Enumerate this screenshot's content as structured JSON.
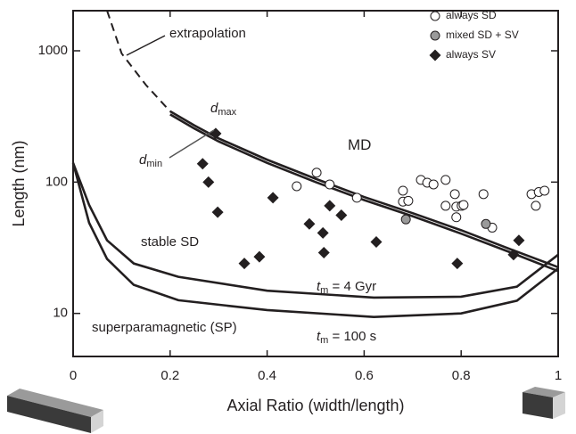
{
  "chart_data": {
    "type": "scatter",
    "xlabel": "Axial Ratio (width/length)",
    "ylabel": "Length (nm)",
    "xlim": [
      0,
      1
    ],
    "ylim": [
      4.7,
      2020
    ],
    "log_y": true,
    "xticks": [
      0,
      0.2,
      0.4,
      0.6,
      0.8,
      1
    ],
    "yticks": [
      10,
      100,
      1000
    ],
    "legend": "upper right",
    "series": [
      {
        "name": "always SD",
        "marker": "circle",
        "color": "#ffffff",
        "x": [
          0.461,
          0.502,
          0.529,
          0.585,
          0.68,
          0.68,
          0.691,
          0.717,
          0.73,
          0.743,
          0.768,
          0.768,
          0.787,
          0.79,
          0.801,
          0.79,
          0.805,
          0.846,
          0.864,
          0.945,
          0.954,
          0.96,
          0.972
        ],
        "values": [
          93,
          118,
          96,
          76,
          86,
          71,
          72,
          104,
          99,
          96,
          104,
          66,
          81,
          65,
          66,
          54,
          67,
          81,
          45,
          81,
          66,
          84,
          86
        ]
      },
      {
        "name": "mixed SD + SV",
        "marker": "circle",
        "color": "#9a9a9a",
        "x": [
          0.686,
          0.851
        ],
        "values": [
          52,
          48
        ]
      },
      {
        "name": "always SV",
        "marker": "diamond",
        "color": "#231f20",
        "x": [
          0.294,
          0.267,
          0.279,
          0.298,
          0.412,
          0.353,
          0.384,
          0.487,
          0.515,
          0.529,
          0.553,
          0.517,
          0.625,
          0.792,
          0.919,
          0.908
        ],
        "values": [
          234,
          138,
          100,
          59,
          76,
          24,
          27,
          48,
          41,
          66,
          56,
          29,
          35,
          24,
          36,
          28
        ]
      }
    ],
    "lines": [
      {
        "style": "dashed",
        "color": "#231f20",
        "x": [
          0.07,
          0.1,
          0.15,
          0.2
        ],
        "values": [
          2020,
          955,
          550,
          346
        ]
      },
      {
        "style": "solid",
        "color": "#231f20",
        "x": [
          0.2,
          0.25,
          0.3,
          0.4,
          0.5,
          0.6,
          0.7,
          0.8,
          0.9,
          1
        ],
        "values": [
          346,
          270,
          215,
          148,
          106,
          77,
          58,
          43,
          31,
          22.5
        ]
      },
      {
        "style": "solid",
        "color": "#231f20",
        "x": [
          0.2,
          0.25,
          0.3,
          0.4,
          0.5,
          0.6,
          0.7,
          0.8,
          0.9,
          1
        ],
        "values": [
          328,
          256,
          204,
          140,
          100,
          73,
          55,
          40.5,
          29.3,
          21
        ]
      },
      {
        "style": "solid",
        "color": "#231f20",
        "x": [
          0,
          0.033,
          0.07,
          0.125,
          0.217,
          0.4,
          0.62,
          0.8,
          0.915,
          1
        ],
        "values": [
          140,
          67,
          36,
          24,
          19,
          14.9,
          13.2,
          13.4,
          16,
          28
        ]
      },
      {
        "style": "solid",
        "color": "#231f20",
        "x": [
          0,
          0.033,
          0.07,
          0.125,
          0.217,
          0.4,
          0.62,
          0.8,
          0.915,
          1
        ],
        "values": [
          140,
          49,
          26,
          16.5,
          12.6,
          10.6,
          9.4,
          10,
          12.5,
          22
        ]
      }
    ],
    "annotations": [
      {
        "text": "extrapolation"
      },
      {
        "italic": "d",
        "sub": "max"
      },
      {
        "italic": "d",
        "sub": "min"
      },
      {
        "text": "MD"
      },
      {
        "text": "stable SD"
      },
      {
        "italic": "t",
        "sub": "m",
        "text": " = 4 Gyr"
      },
      {
        "text": "superparamagnetic (SP)"
      },
      {
        "italic": "t",
        "sub": "m",
        "text": " = 100 s"
      }
    ]
  }
}
